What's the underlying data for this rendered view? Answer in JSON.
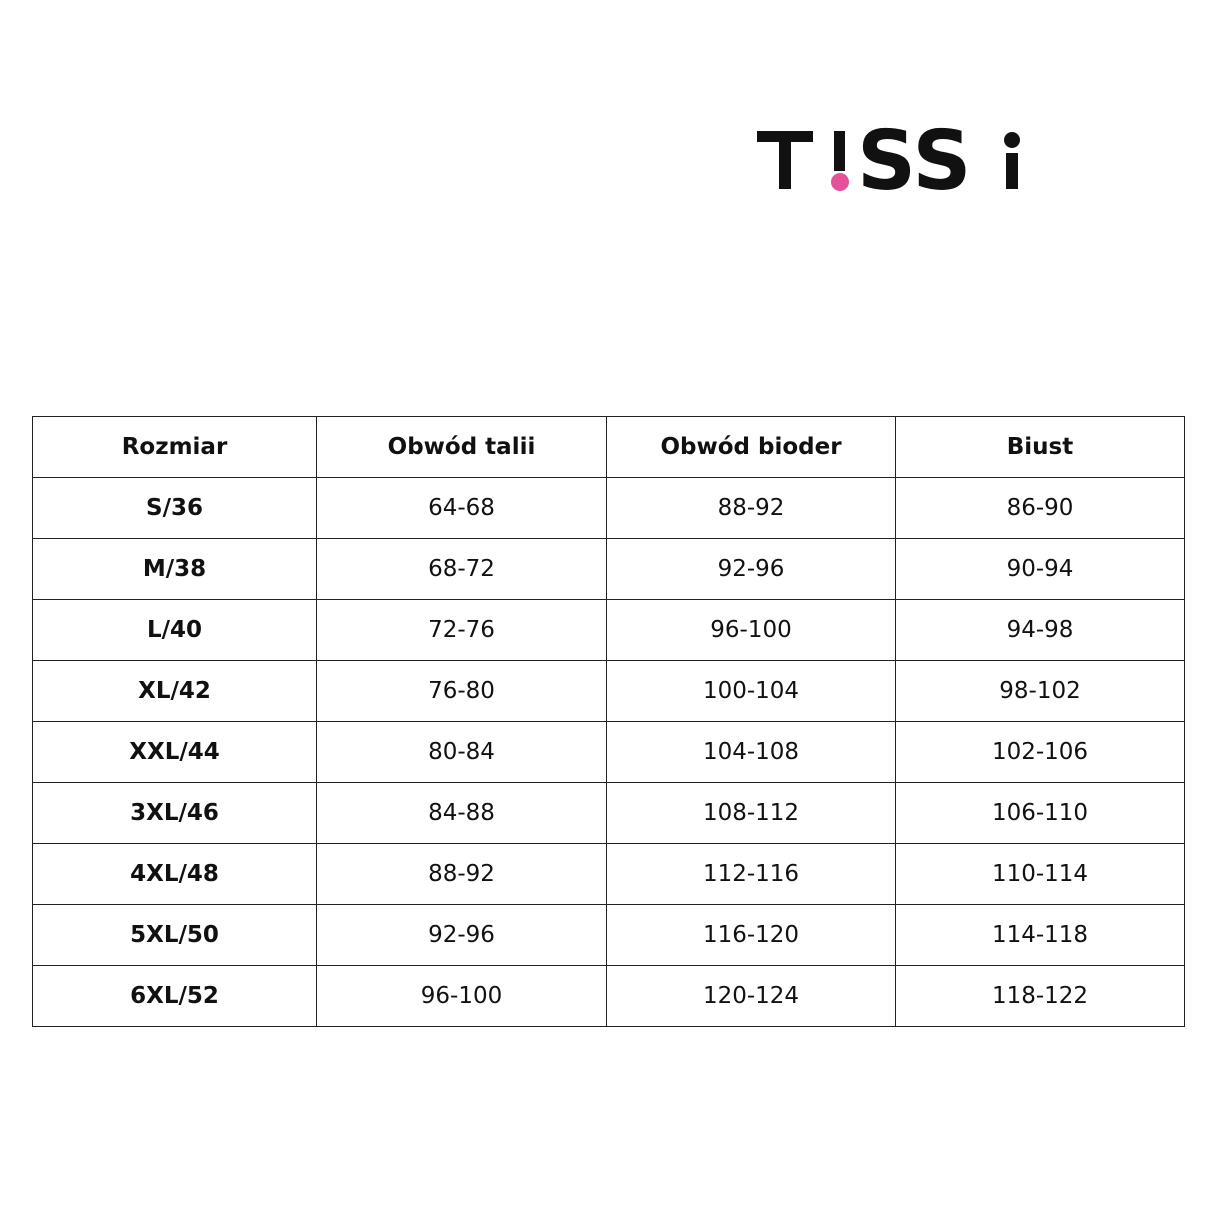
{
  "logo": {
    "text": "T!SSi",
    "accent_color": "#e4539a",
    "color": "#111111"
  },
  "table": {
    "headers": [
      "Rozmiar",
      "Obwód talii",
      "Obwód bioder",
      "Biust"
    ],
    "rows": [
      [
        "S/36",
        "64-68",
        "88-92",
        "86-90"
      ],
      [
        "M/38",
        "68-72",
        "92-96",
        "90-94"
      ],
      [
        "L/40",
        "72-76",
        "96-100",
        "94-98"
      ],
      [
        "XL/42",
        "76-80",
        "100-104",
        "98-102"
      ],
      [
        "XXL/44",
        "80-84",
        "104-108",
        "102-106"
      ],
      [
        "3XL/46",
        "84-88",
        "108-112",
        "106-110"
      ],
      [
        "4XL/48",
        "88-92",
        "112-116",
        "110-114"
      ],
      [
        "5XL/50",
        "92-96",
        "116-120",
        "114-118"
      ],
      [
        "6XL/52",
        "96-100",
        "120-124",
        "118-122"
      ]
    ]
  }
}
